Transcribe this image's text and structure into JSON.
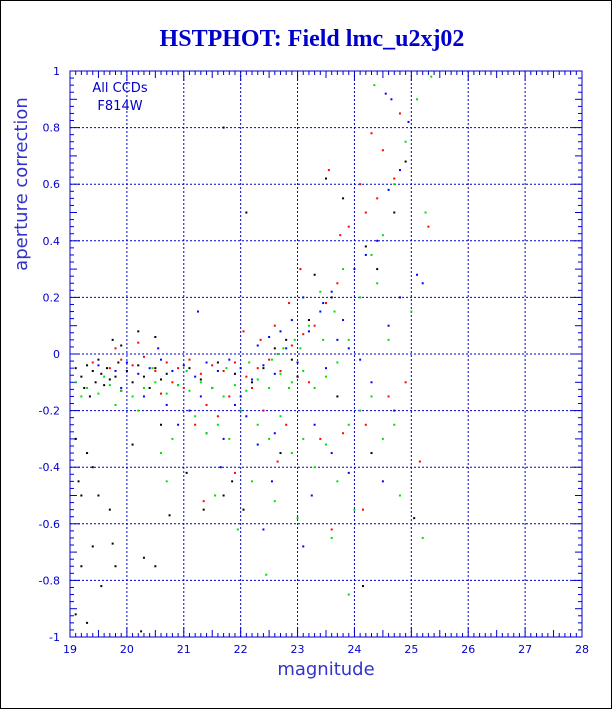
{
  "chart_data": {
    "type": "scatter",
    "title": "HSTPHOT: Field lmc_u2xj02",
    "xlabel": "magnitude",
    "ylabel": "aperture correction",
    "xlim": [
      19,
      28
    ],
    "ylim": [
      -1,
      1
    ],
    "xticks": [
      "19",
      "20",
      "21",
      "22",
      "23",
      "24",
      "25",
      "26",
      "27",
      "28"
    ],
    "yticks": [
      "-1",
      "-0.8",
      "-0.6",
      "-0.4",
      "-0.2",
      "0",
      "0.2",
      "0.4",
      "0.6",
      "0.8",
      "1"
    ],
    "grid": true,
    "annotations": [
      "All CCDs",
      "F814W"
    ],
    "colors": {
      "axis": "#0000cc",
      "title": "#0000cc",
      "black": "#000000",
      "blue": "#0000ff",
      "red": "#ff0000",
      "green": "#00e000"
    },
    "series": [
      {
        "color": "black",
        "points": [
          [
            19.1,
            -0.05
          ],
          [
            19.2,
            -0.08
          ],
          [
            19.25,
            -0.12
          ],
          [
            19.3,
            -0.04
          ],
          [
            19.35,
            -0.15
          ],
          [
            19.4,
            -0.06
          ],
          [
            19.45,
            -0.1
          ],
          [
            19.5,
            -0.02
          ],
          [
            19.55,
            -0.07
          ],
          [
            19.6,
            -0.11
          ],
          [
            19.65,
            -0.05
          ],
          [
            19.7,
            -0.09
          ],
          [
            19.75,
            0.05
          ],
          [
            19.8,
            -0.08
          ],
          [
            19.85,
            -0.03
          ],
          [
            19.9,
            -0.13
          ],
          [
            20.0,
            -0.06
          ],
          [
            20.1,
            -0.1
          ],
          [
            20.2,
            -0.04
          ],
          [
            20.3,
            -0.08
          ],
          [
            20.4,
            -0.12
          ],
          [
            20.5,
            -0.05
          ],
          [
            20.6,
            -0.09
          ],
          [
            20.7,
            -0.07
          ],
          [
            19.1,
            -0.3
          ],
          [
            19.15,
            -0.45
          ],
          [
            19.2,
            -0.5
          ],
          [
            19.3,
            -0.35
          ],
          [
            19.4,
            -0.4
          ],
          [
            19.5,
            -0.5
          ],
          [
            19.4,
            -0.68
          ],
          [
            19.55,
            -0.82
          ],
          [
            19.2,
            -0.75
          ],
          [
            19.1,
            -0.92
          ],
          [
            19.3,
            -0.95
          ],
          [
            19.7,
            -0.55
          ],
          [
            19.75,
            -0.67
          ],
          [
            19.8,
            -0.75
          ],
          [
            20.3,
            -0.72
          ],
          [
            20.5,
            -0.75
          ],
          [
            20.25,
            -0.98
          ],
          [
            20.75,
            -0.57
          ],
          [
            21.05,
            -0.42
          ],
          [
            21.35,
            -0.55
          ],
          [
            21.7,
            -0.5
          ],
          [
            21.85,
            -0.45
          ],
          [
            22.1,
            0.5
          ],
          [
            21.7,
            0.8
          ],
          [
            20.2,
            0.08
          ],
          [
            20.5,
            0.06
          ],
          [
            19.9,
            0.03
          ],
          [
            20.1,
            -0.32
          ],
          [
            20.6,
            -0.25
          ],
          [
            21.4,
            -0.28
          ],
          [
            22.05,
            -0.55
          ],
          [
            23.5,
            0.62
          ],
          [
            23.8,
            0.55
          ],
          [
            24.9,
            0.68
          ],
          [
            24.7,
            0.5
          ],
          [
            24.2,
            0.38
          ],
          [
            24.4,
            0.3
          ],
          [
            23.3,
            0.28
          ],
          [
            23.6,
            0.2
          ],
          [
            22.8,
            0.05
          ],
          [
            22.6,
            0.02
          ],
          [
            22.9,
            -0.02
          ],
          [
            23.2,
            0.12
          ],
          [
            23.0,
            -0.08
          ],
          [
            22.4,
            -0.05
          ],
          [
            22.2,
            -0.1
          ],
          [
            21.9,
            -0.07
          ],
          [
            21.6,
            -0.03
          ],
          [
            21.3,
            -0.09
          ],
          [
            21.1,
            -0.05
          ],
          [
            20.9,
            -0.11
          ],
          [
            22.7,
            -0.35
          ],
          [
            23.7,
            -0.15
          ],
          [
            24.3,
            -0.35
          ],
          [
            24.15,
            -0.82
          ],
          [
            25.05,
            -0.58
          ]
        ]
      },
      {
        "color": "blue",
        "points": [
          [
            19.5,
            -0.04
          ],
          [
            19.8,
            -0.06
          ],
          [
            20.0,
            -0.03
          ],
          [
            20.2,
            -0.07
          ],
          [
            20.4,
            -0.05
          ],
          [
            20.6,
            -0.02
          ],
          [
            20.8,
            -0.06
          ],
          [
            21.0,
            -0.04
          ],
          [
            21.2,
            -0.08
          ],
          [
            21.4,
            -0.03
          ],
          [
            21.6,
            -0.06
          ],
          [
            21.8,
            -0.02
          ],
          [
            22.0,
            -0.05
          ],
          [
            22.2,
            -0.09
          ],
          [
            22.4,
            -0.04
          ],
          [
            22.6,
            -0.07
          ],
          [
            22.8,
            0.02
          ],
          [
            23.0,
            -0.03
          ],
          [
            23.2,
            0.08
          ],
          [
            23.4,
            0.15
          ],
          [
            23.6,
            0.22
          ],
          [
            23.8,
            0.12
          ],
          [
            24.0,
            0.3
          ],
          [
            24.2,
            0.35
          ],
          [
            24.4,
            0.4
          ],
          [
            24.6,
            0.58
          ],
          [
            24.8,
            0.65
          ],
          [
            24.95,
            0.82
          ],
          [
            24.65,
            0.9
          ],
          [
            24.55,
            0.92
          ],
          [
            23.45,
            0.18
          ],
          [
            23.1,
            0.2
          ],
          [
            22.9,
            0.12
          ],
          [
            22.7,
            0.08
          ],
          [
            22.5,
            0.06
          ],
          [
            22.3,
            0.03
          ],
          [
            21.5,
            -0.12
          ],
          [
            21.3,
            -0.15
          ],
          [
            21.1,
            -0.2
          ],
          [
            20.9,
            -0.25
          ],
          [
            21.7,
            -0.3
          ],
          [
            22.1,
            -0.22
          ],
          [
            22.3,
            -0.32
          ],
          [
            22.6,
            -0.28
          ],
          [
            23.3,
            -0.25
          ],
          [
            23.6,
            -0.35
          ],
          [
            23.9,
            -0.42
          ],
          [
            24.5,
            -0.45
          ],
          [
            24.7,
            -0.2
          ],
          [
            24.3,
            -0.1
          ],
          [
            23.5,
            -0.05
          ],
          [
            23.7,
            0.05
          ],
          [
            23.9,
            0.02
          ],
          [
            24.1,
            -0.02
          ],
          [
            22.0,
            -0.15
          ],
          [
            21.9,
            -0.18
          ],
          [
            20.3,
            -0.15
          ],
          [
            20.7,
            -0.18
          ],
          [
            19.9,
            -0.12
          ],
          [
            22.4,
            -0.62
          ],
          [
            23.1,
            -0.68
          ],
          [
            24.6,
            0.1
          ],
          [
            24.8,
            0.2
          ],
          [
            25.1,
            0.28
          ],
          [
            25.2,
            0.25
          ],
          [
            22.55,
            -0.45
          ],
          [
            23.25,
            -0.5
          ],
          [
            21.65,
            -0.4
          ],
          [
            21.25,
            0.15
          ],
          [
            20.55,
            0.02
          ]
        ]
      },
      {
        "color": "red",
        "points": [
          [
            19.4,
            -0.03
          ],
          [
            19.7,
            -0.05
          ],
          [
            19.9,
            -0.02
          ],
          [
            20.1,
            -0.04
          ],
          [
            20.3,
            -0.01
          ],
          [
            20.5,
            -0.06
          ],
          [
            20.7,
            -0.03
          ],
          [
            20.9,
            -0.05
          ],
          [
            21.1,
            -0.02
          ],
          [
            21.3,
            -0.07
          ],
          [
            21.5,
            -0.04
          ],
          [
            21.7,
            -0.06
          ],
          [
            21.9,
            -0.03
          ],
          [
            22.1,
            -0.08
          ],
          [
            22.3,
            -0.05
          ],
          [
            22.5,
            -0.02
          ],
          [
            22.7,
            -0.06
          ],
          [
            22.9,
            0.03
          ],
          [
            23.1,
            0.07
          ],
          [
            23.3,
            0.1
          ],
          [
            23.5,
            0.18
          ],
          [
            23.7,
            0.25
          ],
          [
            23.9,
            0.45
          ],
          [
            24.1,
            0.6
          ],
          [
            24.3,
            0.78
          ],
          [
            24.5,
            0.72
          ],
          [
            24.7,
            0.62
          ],
          [
            23.55,
            0.65
          ],
          [
            23.75,
            0.42
          ],
          [
            24.2,
            0.5
          ],
          [
            24.4,
            0.55
          ],
          [
            24.8,
            0.85
          ],
          [
            25.3,
            0.45
          ],
          [
            23.05,
            0.3
          ],
          [
            22.85,
            0.18
          ],
          [
            22.6,
            0.1
          ],
          [
            22.2,
            -0.12
          ],
          [
            22.0,
            -0.2
          ],
          [
            21.8,
            -0.15
          ],
          [
            21.6,
            -0.22
          ],
          [
            21.4,
            -0.18
          ],
          [
            21.2,
            -0.25
          ],
          [
            21.0,
            -0.12
          ],
          [
            20.8,
            -0.1
          ],
          [
            20.6,
            -0.14
          ],
          [
            22.4,
            -0.2
          ],
          [
            22.8,
            -0.25
          ],
          [
            23.4,
            -0.3
          ],
          [
            23.8,
            -0.28
          ],
          [
            24.2,
            -0.25
          ],
          [
            24.6,
            -0.15
          ],
          [
            24.9,
            -0.1
          ],
          [
            23.2,
            -0.1
          ],
          [
            22.65,
            -0.38
          ],
          [
            21.35,
            -0.52
          ],
          [
            21.9,
            -0.42
          ],
          [
            23.6,
            -0.62
          ],
          [
            24.15,
            -0.55
          ],
          [
            25.15,
            -0.38
          ],
          [
            20.2,
            0.04
          ],
          [
            19.8,
            0.02
          ],
          [
            22.05,
            0.08
          ],
          [
            22.35,
            0.05
          ]
        ]
      },
      {
        "color": "green",
        "points": [
          [
            19.1,
            -0.1
          ],
          [
            19.3,
            -0.12
          ],
          [
            19.5,
            -0.14
          ],
          [
            19.7,
            -0.11
          ],
          [
            19.9,
            -0.13
          ],
          [
            20.1,
            -0.15
          ],
          [
            20.3,
            -0.12
          ],
          [
            20.5,
            -0.1
          ],
          [
            20.7,
            -0.14
          ],
          [
            20.9,
            -0.11
          ],
          [
            21.1,
            -0.13
          ],
          [
            21.3,
            -0.1
          ],
          [
            21.5,
            -0.12
          ],
          [
            21.7,
            -0.15
          ],
          [
            21.9,
            -0.11
          ],
          [
            22.1,
            -0.13
          ],
          [
            22.3,
            -0.09
          ],
          [
            22.5,
            -0.12
          ],
          [
            22.7,
            -0.07
          ],
          [
            22.9,
            -0.1
          ],
          [
            23.1,
            -0.06
          ],
          [
            23.3,
            -0.12
          ],
          [
            23.5,
            -0.08
          ],
          [
            23.7,
            -0.03
          ],
          [
            23.9,
            0.05
          ],
          [
            24.1,
            0.2
          ],
          [
            24.3,
            0.35
          ],
          [
            24.5,
            0.42
          ],
          [
            24.7,
            0.6
          ],
          [
            24.9,
            0.75
          ],
          [
            25.1,
            0.9
          ],
          [
            24.35,
            0.95
          ],
          [
            25.35,
            0.98
          ],
          [
            25.25,
            0.5
          ],
          [
            23.8,
            0.3
          ],
          [
            23.4,
            0.22
          ],
          [
            23.2,
            0.1
          ],
          [
            22.95,
            0.05
          ],
          [
            22.75,
            0.02
          ],
          [
            22.55,
            -0.02
          ],
          [
            22.3,
            -0.25
          ],
          [
            22.5,
            -0.3
          ],
          [
            22.7,
            -0.22
          ],
          [
            22.9,
            -0.35
          ],
          [
            23.1,
            -0.3
          ],
          [
            23.3,
            -0.4
          ],
          [
            23.5,
            -0.32
          ],
          [
            23.7,
            -0.45
          ],
          [
            23.9,
            -0.25
          ],
          [
            24.1,
            -0.2
          ],
          [
            24.3,
            -0.15
          ],
          [
            24.5,
            -0.3
          ],
          [
            24.7,
            -0.25
          ],
          [
            21.8,
            -0.3
          ],
          [
            22.0,
            -0.2
          ],
          [
            21.6,
            -0.25
          ],
          [
            21.4,
            -0.28
          ],
          [
            21.2,
            -0.22
          ],
          [
            20.8,
            -0.3
          ],
          [
            20.6,
            -0.35
          ],
          [
            22.2,
            -0.45
          ],
          [
            22.6,
            -0.52
          ],
          [
            23.0,
            -0.58
          ],
          [
            23.6,
            -0.65
          ],
          [
            23.9,
            -0.85
          ],
          [
            22.45,
            -0.78
          ],
          [
            21.95,
            -0.62
          ],
          [
            21.55,
            -0.5
          ],
          [
            20.7,
            -0.45
          ],
          [
            24.8,
            -0.5
          ],
          [
            25.2,
            -0.65
          ],
          [
            24.0,
            -0.55
          ],
          [
            24.4,
            0.25
          ],
          [
            24.6,
            0.05
          ],
          [
            25.0,
            0.15
          ],
          [
            23.65,
            0.15
          ],
          [
            23.45,
            0.05
          ],
          [
            22.85,
            -0.12
          ],
          [
            21.05,
            -0.06
          ],
          [
            20.45,
            -0.05
          ],
          [
            19.6,
            -0.08
          ],
          [
            19.2,
            -0.15
          ],
          [
            19.8,
            -0.18
          ],
          [
            20.2,
            -0.2
          ],
          [
            21.75,
            -0.05
          ],
          [
            22.15,
            -0.03
          ],
          [
            22.65,
            0.0
          ],
          [
            23.05,
            0.02
          ]
        ]
      }
    ]
  }
}
